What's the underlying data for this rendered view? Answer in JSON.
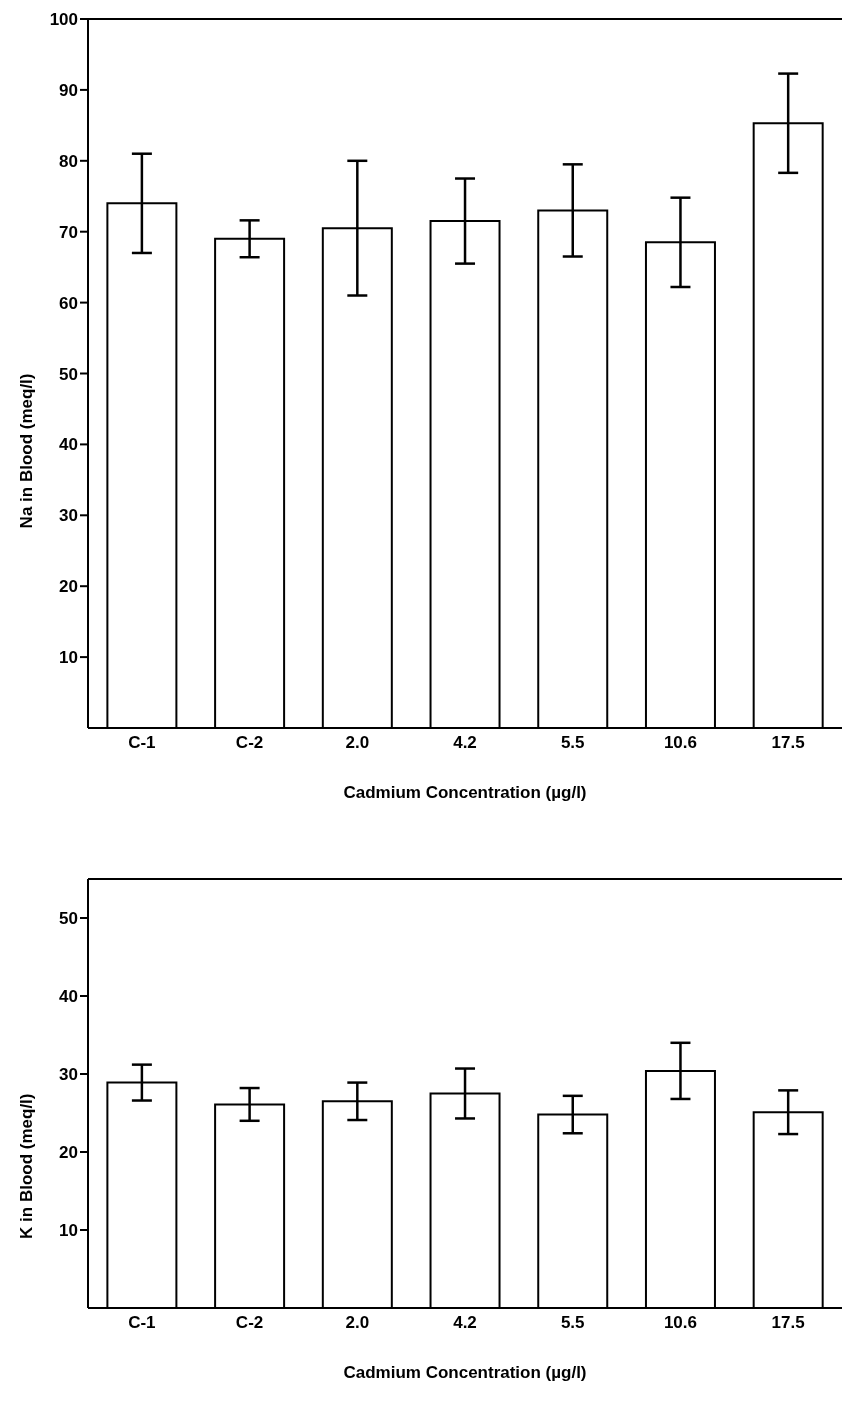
{
  "chart_data": [
    {
      "type": "bar",
      "xlabel": "Cadmium Concentration (µg/l)",
      "ylabel": "Na in Blood (meq/l)",
      "categories": [
        "C-1",
        "C-2",
        "2.0",
        "4.2",
        "5.5",
        "10.6",
        "17.5"
      ],
      "series": [
        {
          "color": "#ffffff",
          "values": [
            74,
            69,
            70.5,
            71.5,
            73,
            68.5,
            85.3
          ],
          "errors": [
            7,
            2.6,
            9.5,
            6,
            6.5,
            6.3,
            7
          ]
        }
      ],
      "ylim": [
        0,
        100
      ],
      "yticks": [
        10,
        20,
        30,
        40,
        50,
        60,
        70,
        80,
        90,
        100
      ],
      "grid": false,
      "legend": false
    },
    {
      "type": "bar",
      "xlabel": "Cadmium Concentration (µg/l)",
      "ylabel": "K in Blood (meq/l)",
      "categories": [
        "C-1",
        "C-2",
        "2.0",
        "4.2",
        "5.5",
        "10.6",
        "17.5"
      ],
      "series": [
        {
          "color": "#ffffff",
          "values": [
            28.9,
            26.1,
            26.5,
            27.5,
            24.8,
            30.4,
            25.1
          ],
          "errors": [
            2.3,
            2.1,
            2.4,
            3.2,
            2.4,
            3.6,
            2.8
          ]
        }
      ],
      "ylim": [
        0,
        55
      ],
      "yticks": [
        10,
        20,
        30,
        40,
        50
      ],
      "grid": false,
      "legend": false
    }
  ]
}
